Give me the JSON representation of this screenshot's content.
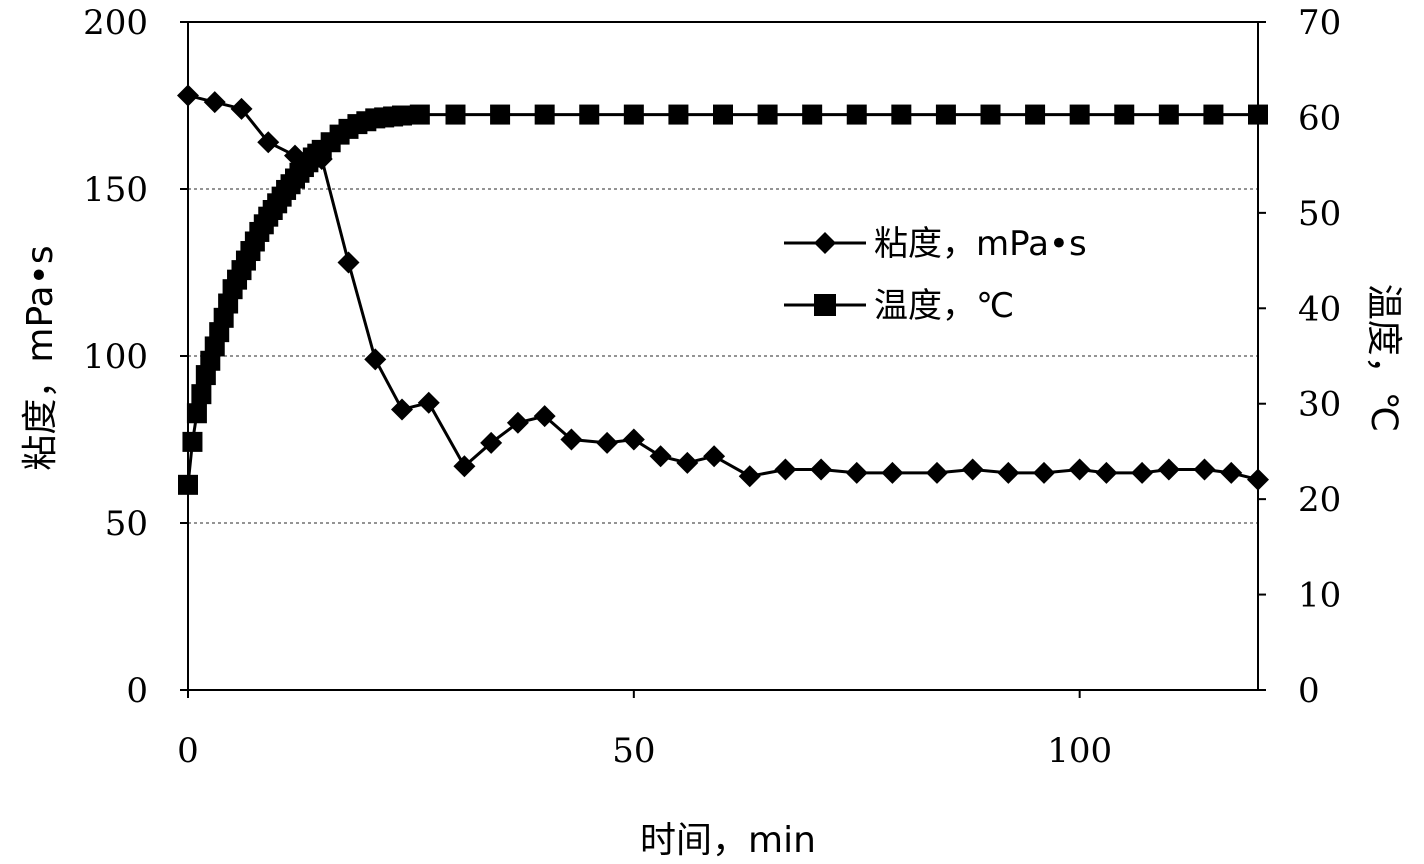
{
  "chart_data": {
    "type": "line",
    "xlabel": "时间，min",
    "ylabel": "粘度，mPa•s",
    "y2label": "温度，℃",
    "xlim": [
      0,
      120
    ],
    "ylim": [
      0,
      200
    ],
    "y2lim": [
      0,
      70
    ],
    "x_ticks": [
      "0",
      "50",
      "100"
    ],
    "y_ticks": [
      "0",
      "50",
      "100",
      "150",
      "200"
    ],
    "y2_ticks": [
      "0",
      "10",
      "20",
      "30",
      "40",
      "50",
      "60",
      "70"
    ],
    "grid": "horizontal dashed at 50, 100, 150",
    "legend": "center-right",
    "series": [
      {
        "name": "粘度，mPa•s",
        "axis": "left",
        "marker": "diamond",
        "color": "#000000",
        "points": [
          [
            0,
            178
          ],
          [
            3,
            176
          ],
          [
            6,
            174
          ],
          [
            9,
            164
          ],
          [
            12,
            160
          ],
          [
            15,
            159
          ],
          [
            18,
            128
          ],
          [
            21,
            99
          ],
          [
            24,
            84
          ],
          [
            27,
            86
          ],
          [
            31,
            67
          ],
          [
            34,
            74
          ],
          [
            37,
            80
          ],
          [
            40,
            82
          ],
          [
            43,
            75
          ],
          [
            47,
            74
          ],
          [
            50,
            75
          ],
          [
            53,
            70
          ],
          [
            56,
            68
          ],
          [
            59,
            70
          ],
          [
            63,
            64
          ],
          [
            67,
            66
          ],
          [
            71,
            66
          ],
          [
            75,
            65
          ],
          [
            79,
            65
          ],
          [
            84,
            65
          ],
          [
            88,
            66
          ],
          [
            92,
            65
          ],
          [
            96,
            65
          ],
          [
            100,
            66
          ],
          [
            103,
            65
          ],
          [
            107,
            65
          ],
          [
            110,
            66
          ],
          [
            114,
            66
          ],
          [
            117,
            65
          ],
          [
            120,
            63
          ]
        ]
      },
      {
        "name": "温度，℃",
        "axis": "right",
        "marker": "square",
        "color": "#000000",
        "points": [
          [
            0,
            21.5
          ],
          [
            0.5,
            26
          ],
          [
            1,
            29
          ],
          [
            1.5,
            31
          ],
          [
            2,
            33
          ],
          [
            2.5,
            34.5
          ],
          [
            3,
            36
          ],
          [
            3.5,
            37.5
          ],
          [
            4,
            39
          ],
          [
            4.5,
            40.5
          ],
          [
            5,
            42
          ],
          [
            5.5,
            43
          ],
          [
            6,
            44
          ],
          [
            6.5,
            45
          ],
          [
            7,
            46
          ],
          [
            7.5,
            47
          ],
          [
            8,
            48
          ],
          [
            8.5,
            48.8
          ],
          [
            9,
            49.6
          ],
          [
            9.5,
            50.3
          ],
          [
            10,
            51
          ],
          [
            10.5,
            51.7
          ],
          [
            11,
            52.4
          ],
          [
            11.5,
            53
          ],
          [
            12,
            53.6
          ],
          [
            12.5,
            54.2
          ],
          [
            13,
            54.8
          ],
          [
            13.5,
            55.3
          ],
          [
            14,
            55.8
          ],
          [
            14.5,
            56.2
          ],
          [
            15,
            56.6
          ],
          [
            16,
            57.4
          ],
          [
            17,
            58.2
          ],
          [
            18,
            58.8
          ],
          [
            19,
            59.3
          ],
          [
            20,
            59.6
          ],
          [
            21,
            59.9
          ],
          [
            22,
            60
          ],
          [
            23,
            60.1
          ],
          [
            24,
            60.2
          ],
          [
            26,
            60.3
          ],
          [
            30,
            60.3
          ],
          [
            35,
            60.3
          ],
          [
            40,
            60.3
          ],
          [
            45,
            60.3
          ],
          [
            50,
            60.3
          ],
          [
            55,
            60.3
          ],
          [
            60,
            60.3
          ],
          [
            65,
            60.3
          ],
          [
            70,
            60.3
          ],
          [
            75,
            60.3
          ],
          [
            80,
            60.3
          ],
          [
            85,
            60.3
          ],
          [
            90,
            60.3
          ],
          [
            95,
            60.3
          ],
          [
            100,
            60.3
          ],
          [
            105,
            60.3
          ],
          [
            110,
            60.3
          ],
          [
            115,
            60.3
          ],
          [
            120,
            60.3
          ]
        ]
      }
    ]
  }
}
